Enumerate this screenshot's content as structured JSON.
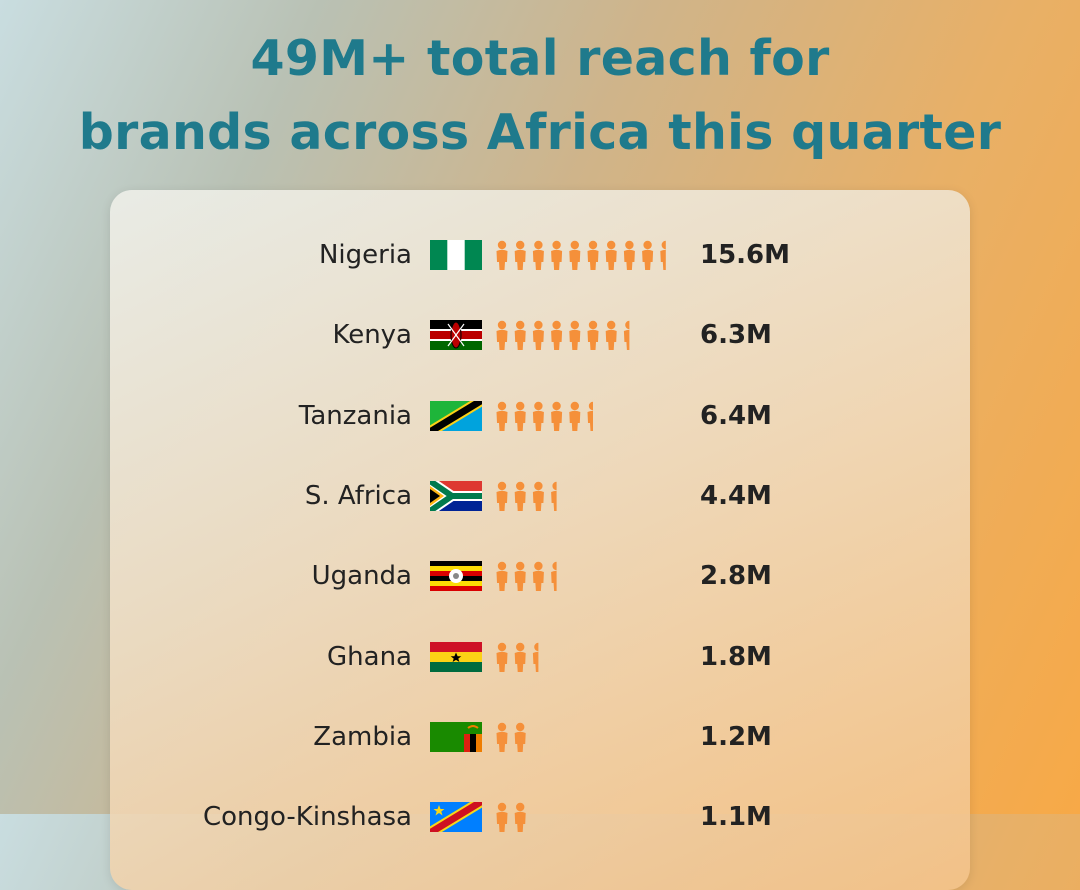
{
  "title": {
    "line1": "49M+ total reach for",
    "line2": "brands across Africa this quarter"
  },
  "colors": {
    "title": "#1f7a8c",
    "person_icon": "#f5903a",
    "text": "#222222"
  },
  "chart_data": {
    "type": "bar",
    "style": "pictograph",
    "title": "49M+ total reach for brands across Africa this quarter",
    "categories": [
      "Nigeria",
      "Kenya",
      "Tanzania",
      "S. Africa",
      "Uganda",
      "Ghana",
      "Zambia",
      "Congo-Kinshasa"
    ],
    "series": [
      {
        "values": [
          15.6,
          6.3,
          6.4,
          4.4,
          2.8,
          1.8,
          1.2,
          1.1
        ]
      }
    ],
    "value_labels": [
      "15.6M",
      "6.3M",
      "6.4M",
      "4.4M",
      "2.8M",
      "1.8M",
      "1.2M",
      "1.1M"
    ],
    "icon_counts": [
      9.5,
      7.5,
      5.5,
      3.5,
      3.5,
      2.5,
      2,
      2
    ],
    "flags": [
      "flag-nigeria-icon",
      "flag-kenya-icon",
      "flag-tanzania-icon",
      "flag-south-africa-icon",
      "flag-uganda-icon",
      "flag-ghana-icon",
      "flag-zambia-icon",
      "flag-drc-icon"
    ]
  }
}
